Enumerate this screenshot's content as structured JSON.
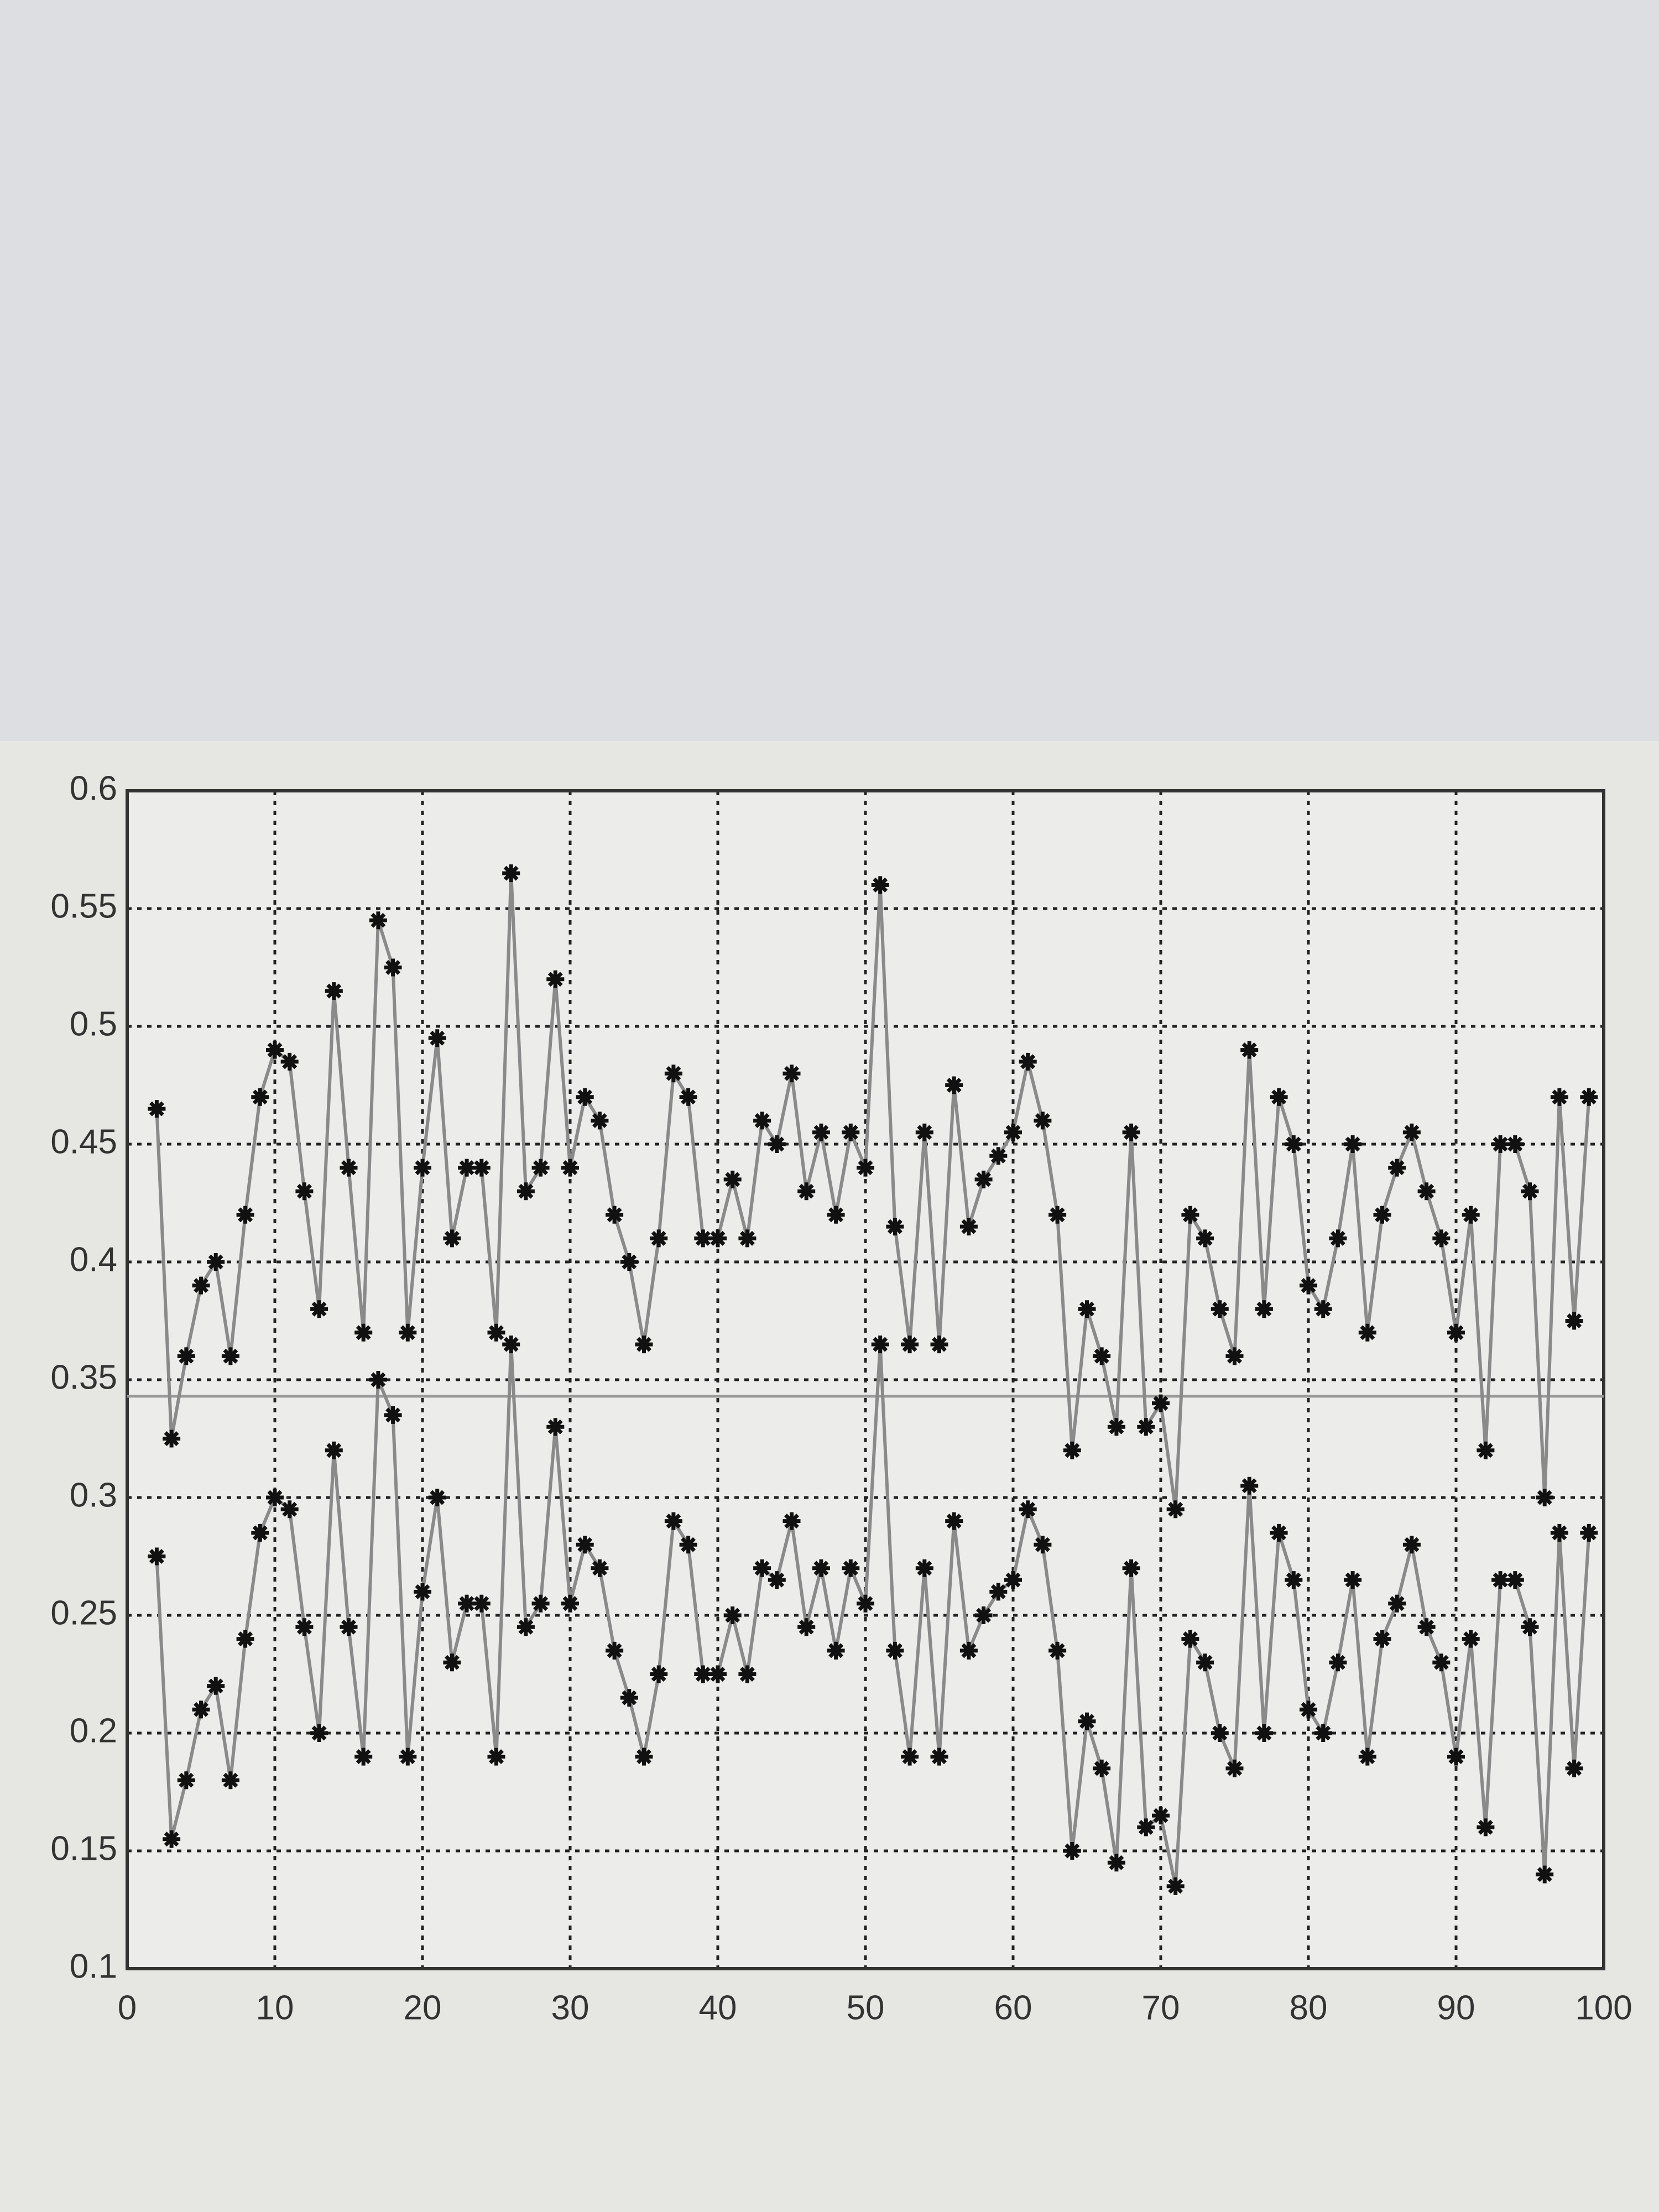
{
  "chart_data": {
    "type": "line",
    "x": [
      2,
      3,
      4,
      5,
      6,
      7,
      8,
      9,
      10,
      11,
      12,
      13,
      14,
      15,
      16,
      17,
      18,
      19,
      20,
      21,
      22,
      23,
      24,
      25,
      26,
      27,
      28,
      29,
      30,
      31,
      32,
      33,
      34,
      35,
      36,
      37,
      38,
      39,
      40,
      41,
      42,
      43,
      44,
      45,
      46,
      47,
      48,
      49,
      50,
      51,
      52,
      53,
      54,
      55,
      56,
      57,
      58,
      59,
      60,
      61,
      62,
      63,
      64,
      65,
      66,
      67,
      68,
      69,
      70,
      71,
      72,
      73,
      74,
      75,
      76,
      77,
      78,
      79,
      80,
      81,
      82,
      83,
      84,
      85,
      86,
      87,
      88,
      89,
      90,
      91,
      92,
      93,
      94,
      95,
      96,
      97,
      98,
      99
    ],
    "series": [
      {
        "color": "#8a8a8a",
        "marker_color": "#111111",
        "values": [
          0.465,
          0.325,
          0.36,
          0.39,
          0.4,
          0.36,
          0.42,
          0.47,
          0.49,
          0.485,
          0.43,
          0.38,
          0.515,
          0.44,
          0.37,
          0.545,
          0.525,
          0.37,
          0.44,
          0.495,
          0.41,
          0.44,
          0.44,
          0.37,
          0.565,
          0.43,
          0.44,
          0.52,
          0.44,
          0.47,
          0.46,
          0.42,
          0.4,
          0.365,
          0.41,
          0.48,
          0.47,
          0.41,
          0.41,
          0.435,
          0.41,
          0.46,
          0.45,
          0.48,
          0.43,
          0.455,
          0.42,
          0.455,
          0.44,
          0.56,
          0.415,
          0.365,
          0.455,
          0.365,
          0.475,
          0.415,
          0.435,
          0.445,
          0.455,
          0.485,
          0.46,
          0.42,
          0.32,
          0.38,
          0.36,
          0.33,
          0.455,
          0.33,
          0.34,
          0.295,
          0.42,
          0.41,
          0.38,
          0.36,
          0.49,
          0.38,
          0.47,
          0.45,
          0.39,
          0.38,
          0.41,
          0.45,
          0.37,
          0.42,
          0.44,
          0.455,
          0.43,
          0.41,
          0.37,
          0.42,
          0.32,
          0.45,
          0.45,
          0.43,
          0.3,
          0.47,
          0.375,
          0.47
        ]
      },
      {
        "color": "#8a8a8a",
        "marker_color": "#111111",
        "values": [
          0.275,
          0.155,
          0.18,
          0.21,
          0.22,
          0.18,
          0.24,
          0.285,
          0.3,
          0.295,
          0.245,
          0.2,
          0.32,
          0.245,
          0.19,
          0.35,
          0.335,
          0.19,
          0.26,
          0.3,
          0.23,
          0.255,
          0.255,
          0.19,
          0.365,
          0.245,
          0.255,
          0.33,
          0.255,
          0.28,
          0.27,
          0.235,
          0.215,
          0.19,
          0.225,
          0.29,
          0.28,
          0.225,
          0.225,
          0.25,
          0.225,
          0.27,
          0.265,
          0.29,
          0.245,
          0.27,
          0.235,
          0.27,
          0.255,
          0.365,
          0.235,
          0.19,
          0.27,
          0.19,
          0.29,
          0.235,
          0.25,
          0.26,
          0.265,
          0.295,
          0.28,
          0.235,
          0.15,
          0.205,
          0.185,
          0.145,
          0.27,
          0.16,
          0.165,
          0.135,
          0.24,
          0.23,
          0.2,
          0.185,
          0.305,
          0.2,
          0.285,
          0.265,
          0.21,
          0.2,
          0.23,
          0.265,
          0.19,
          0.24,
          0.255,
          0.28,
          0.245,
          0.23,
          0.19,
          0.24,
          0.16,
          0.265,
          0.265,
          0.245,
          0.14,
          0.285,
          0.185,
          0.285
        ]
      }
    ],
    "reference_line": 0.343,
    "xlim": [
      0,
      100
    ],
    "xticks": [
      0,
      10,
      20,
      30,
      40,
      50,
      60,
      70,
      80,
      90,
      100
    ],
    "ylim": [
      0.1,
      0.6
    ],
    "yticks": [
      0.1,
      0.15,
      0.2,
      0.25,
      0.3,
      0.35,
      0.4,
      0.45,
      0.5,
      0.55,
      0.6
    ],
    "grid": true
  }
}
